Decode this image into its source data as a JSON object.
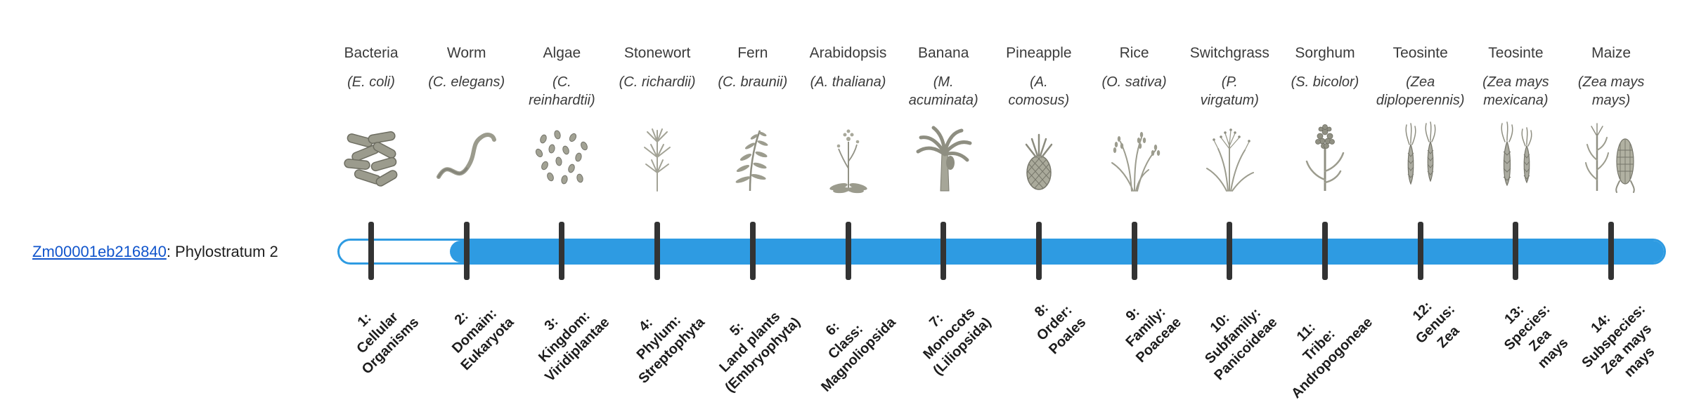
{
  "page": {
    "background": "#ffffff"
  },
  "gene": {
    "id": "Zm00001eb216840",
    "phylostratum_text": ": Phylostratum 2"
  },
  "bar": {
    "fill_color": "#2e9be2",
    "tick_color": "#333333",
    "link_color": "#1155cc",
    "fill_start_stratum": 2,
    "total_strata": 14
  },
  "strata": [
    {
      "index": 1,
      "species": "Bacteria",
      "scientific_name": "(E. coli)",
      "icon": "bacteria-icon",
      "stratum_label": "1:\nCellular\nOrganisms"
    },
    {
      "index": 2,
      "species": "Worm",
      "scientific_name": "(C. elegans)",
      "icon": "worm-icon",
      "stratum_label": "2:\nDomain:\nEukaryota"
    },
    {
      "index": 3,
      "species": "Algae",
      "scientific_name": "(C.\nreinhardtii)",
      "icon": "algae-icon",
      "stratum_label": "3:\nKingdom:\nViridiplantae"
    },
    {
      "index": 4,
      "species": "Stonewort",
      "scientific_name": "(C. richardii)",
      "icon": "stonewort-icon",
      "stratum_label": "4:\nPhylum:\nStreptophyta"
    },
    {
      "index": 5,
      "species": "Fern",
      "scientific_name": "(C. braunii)",
      "icon": "fern-icon",
      "stratum_label": "5:\nLand plants\n(Embryophyta)"
    },
    {
      "index": 6,
      "species": "Arabidopsis",
      "scientific_name": "(A. thaliana)",
      "icon": "arabidopsis-icon",
      "stratum_label": "6:\nClass:\nMagnoliopsida"
    },
    {
      "index": 7,
      "species": "Banana",
      "scientific_name": "(M.\nacuminata)",
      "icon": "banana-icon",
      "stratum_label": "7:\nMonocots\n(Liliopsida)"
    },
    {
      "index": 8,
      "species": "Pineapple",
      "scientific_name": "(A.\ncomosus)",
      "icon": "pineapple-icon",
      "stratum_label": "8:\nOrder:\nPoales"
    },
    {
      "index": 9,
      "species": "Rice",
      "scientific_name": "(O. sativa)",
      "icon": "rice-icon",
      "stratum_label": "9:\nFamily:\nPoaceae"
    },
    {
      "index": 10,
      "species": "Switchgrass",
      "scientific_name": "(P.\nvirgatum)",
      "icon": "switchgrass-icon",
      "stratum_label": "10:\nSubfamily:\nPanicoideae"
    },
    {
      "index": 11,
      "species": "Sorghum",
      "scientific_name": "(S. bicolor)",
      "icon": "sorghum-icon",
      "stratum_label": "11:\nTribe:\nAndropogoneae"
    },
    {
      "index": 12,
      "species": "Teosinte",
      "scientific_name": "(Zea\ndiploperennis)",
      "icon": "teosinte-diploperennis-icon",
      "stratum_label": "12:\nGenus:\nZea"
    },
    {
      "index": 13,
      "species": "Teosinte",
      "scientific_name": "(Zea mays\nmexicana)",
      "icon": "teosinte-mexicana-icon",
      "stratum_label": "13:\nSpecies:\nZea\nmays"
    },
    {
      "index": 14,
      "species": "Maize",
      "scientific_name": "(Zea mays\nmays)",
      "icon": "maize-icon",
      "stratum_label": "14:\nSubspecies:\nZea mays\nmays"
    }
  ]
}
